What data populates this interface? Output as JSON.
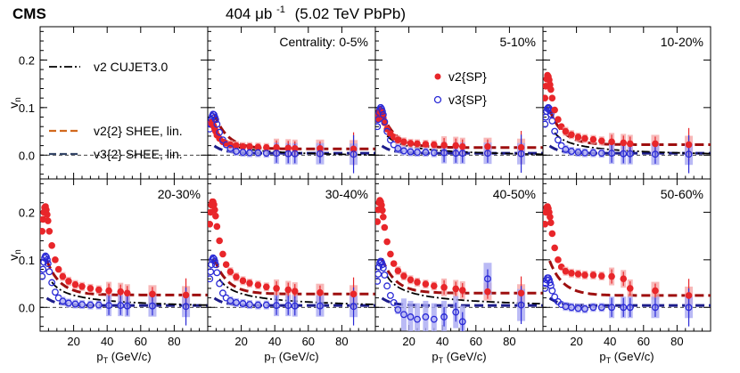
{
  "header": {
    "experiment": "CMS",
    "luminosity": "404 μb",
    "lumi_exp": "-1",
    "energy": "(5.02 TeV PbPb)"
  },
  "legend": {
    "cujet": "v2 CUJET3.0",
    "v2shee": "v2{2} SHEE, lin.",
    "v3shee": "v3{2} SHEE, lin.",
    "v2sp": "v2{SP}",
    "v3sp": "v3{SP}"
  },
  "colors": {
    "v2": "#e8262a",
    "v3": "#2a2ad6",
    "v2_band": "#f6a7a7",
    "v3_band": "#a9a9f2",
    "cujet": "#000000",
    "shee_v2": "#9e0f0f",
    "shee_v3": "#1c1c8a",
    "legend_v2shee": "#d2691e",
    "legend_v3shee": "#334466"
  },
  "chart_data": {
    "type": "scatter",
    "xlabel": "pT (GeV/c)",
    "ylabel": "vn",
    "xlim": [
      0,
      100
    ],
    "ylim": [
      -0.05,
      0.27
    ],
    "xticks": [
      "20",
      "40",
      "60",
      "80"
    ],
    "yticks": [
      "0.0",
      "0.1",
      "0.2"
    ],
    "x": [
      1.2,
      1.7,
      2.2,
      2.7,
      3.2,
      3.7,
      4.2,
      4.7,
      5.5,
      7,
      9,
      11,
      13.5,
      17,
      21,
      25,
      30,
      35,
      41,
      48,
      52,
      67,
      87
    ],
    "panels": [
      {
        "label": "Centrality: 0-5%",
        "v2": [
          0.065,
          0.068,
          0.07,
          0.068,
          0.064,
          0.06,
          0.055,
          0.05,
          0.042,
          0.035,
          0.028,
          0.025,
          0.022,
          0.02,
          0.018,
          0.018,
          0.017,
          0.016,
          0.016,
          0.015,
          0.014,
          0.014,
          0.013
        ],
        "v3": [
          0.055,
          0.065,
          0.075,
          0.082,
          0.086,
          0.085,
          0.08,
          0.075,
          0.065,
          0.048,
          0.032,
          0.022,
          0.014,
          0.008,
          0.006,
          0.005,
          0.005,
          0.004,
          0.004,
          0.003,
          0.003,
          0.003,
          0.002
        ],
        "cujet": true
      },
      {
        "label": "5-10%",
        "v2": [
          0.075,
          0.085,
          0.092,
          0.094,
          0.093,
          0.09,
          0.085,
          0.078,
          0.068,
          0.055,
          0.045,
          0.038,
          0.032,
          0.028,
          0.025,
          0.024,
          0.023,
          0.022,
          0.021,
          0.02,
          0.018,
          0.018,
          0.016
        ],
        "v3": [
          0.06,
          0.075,
          0.09,
          0.096,
          0.1,
          0.097,
          0.092,
          0.085,
          0.07,
          0.05,
          0.032,
          0.022,
          0.014,
          0.009,
          0.007,
          0.006,
          0.006,
          0.005,
          0.005,
          0.004,
          0.004,
          0.004,
          0.003
        ],
        "cujet": true
      },
      {
        "label": "10-20%",
        "v2": [
          0.12,
          0.145,
          0.16,
          0.168,
          0.165,
          0.158,
          0.148,
          0.138,
          0.12,
          0.095,
          0.075,
          0.06,
          0.05,
          0.043,
          0.038,
          0.035,
          0.033,
          0.03,
          0.028,
          0.026,
          0.024,
          0.024,
          0.022
        ],
        "v3": [
          0.065,
          0.08,
          0.092,
          0.098,
          0.1,
          0.098,
          0.093,
          0.086,
          0.072,
          0.05,
          0.032,
          0.02,
          0.012,
          0.008,
          0.006,
          0.005,
          0.005,
          0.004,
          0.004,
          0.003,
          0.003,
          0.002,
          0.002
        ],
        "cujet": true
      },
      {
        "label": "20-30%",
        "v2": [
          0.16,
          0.185,
          0.2,
          0.21,
          0.212,
          0.205,
          0.195,
          0.182,
          0.16,
          0.13,
          0.1,
          0.08,
          0.065,
          0.055,
          0.048,
          0.044,
          0.04,
          0.037,
          0.035,
          0.033,
          0.03,
          0.028,
          0.026
        ],
        "v3": [
          0.065,
          0.08,
          0.095,
          0.104,
          0.108,
          0.106,
          0.1,
          0.092,
          0.075,
          0.052,
          0.032,
          0.02,
          0.013,
          0.009,
          0.007,
          0.006,
          0.005,
          0.005,
          0.004,
          0.004,
          0.003,
          0.003,
          0.002
        ],
        "cujet": true
      },
      {
        "label": "30-40%",
        "v2": [
          0.175,
          0.2,
          0.215,
          0.222,
          0.222,
          0.216,
          0.205,
          0.192,
          0.17,
          0.14,
          0.112,
          0.09,
          0.075,
          0.064,
          0.056,
          0.051,
          0.047,
          0.043,
          0.04,
          0.037,
          0.034,
          0.031,
          0.028
        ],
        "v3": [
          0.06,
          0.075,
          0.09,
          0.1,
          0.104,
          0.102,
          0.097,
          0.09,
          0.073,
          0.05,
          0.03,
          0.02,
          0.014,
          0.01,
          0.008,
          0.006,
          0.005,
          0.005,
          0.004,
          0.004,
          0.003,
          0.003,
          0.002
        ],
        "cujet": true
      },
      {
        "label": "40-50%",
        "v2": [
          0.18,
          0.205,
          0.22,
          0.225,
          0.222,
          0.215,
          0.204,
          0.19,
          0.168,
          0.138,
          0.112,
          0.092,
          0.077,
          0.066,
          0.058,
          0.053,
          0.049,
          0.045,
          0.042,
          0.039,
          0.036,
          0.033,
          0.03
        ],
        "v3": [
          0.055,
          0.07,
          0.085,
          0.093,
          0.097,
          0.095,
          0.09,
          0.083,
          0.068,
          0.045,
          0.025,
          0.01,
          -0.005,
          -0.015,
          -0.02,
          -0.025,
          -0.02,
          -0.025,
          -0.02,
          -0.01,
          -0.03,
          0.06,
          0.005
        ],
        "cujet": true
      },
      {
        "label": "50-60%",
        "v2": [
          0.175,
          0.2,
          0.21,
          0.212,
          0.208,
          0.2,
          0.19,
          0.178,
          0.155,
          0.125,
          0.1,
          0.085,
          0.076,
          0.072,
          0.07,
          0.068,
          0.068,
          0.066,
          0.065,
          0.06,
          0.04,
          0.035,
          0.025
        ],
        "v3": [
          0.04,
          0.05,
          0.058,
          0.062,
          0.062,
          0.058,
          0.052,
          0.046,
          0.035,
          0.022,
          0.012,
          0.006,
          0.002,
          0.0,
          -0.002,
          -0.003,
          0.0,
          0.0,
          0.0,
          0.0,
          0.0,
          0.0,
          0.0
        ],
        "cujet": false
      }
    ]
  }
}
